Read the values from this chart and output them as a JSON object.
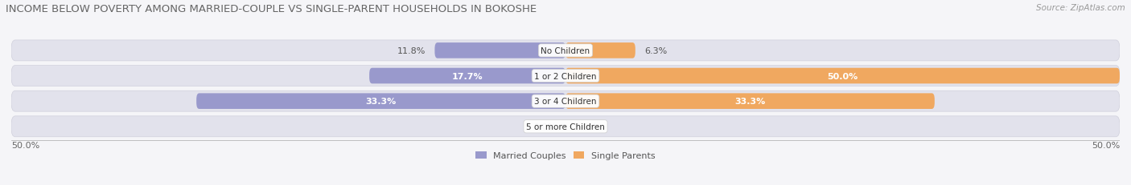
{
  "title": "INCOME BELOW POVERTY AMONG MARRIED-COUPLE VS SINGLE-PARENT HOUSEHOLDS IN BOKOSHE",
  "source": "Source: ZipAtlas.com",
  "categories": [
    "No Children",
    "1 or 2 Children",
    "3 or 4 Children",
    "5 or more Children"
  ],
  "married_values": [
    11.8,
    17.7,
    33.3,
    0.0
  ],
  "single_values": [
    6.3,
    50.0,
    33.3,
    0.0
  ],
  "married_color": "#9999cc",
  "single_color": "#f0a860",
  "bar_bg_color": "#e2e2ec",
  "row_sep_color": "#d0d0dc",
  "background_color": "#f5f5f8",
  "max_val": 50.0,
  "axis_label_left": "50.0%",
  "axis_label_right": "50.0%",
  "legend_married": "Married Couples",
  "legend_single": "Single Parents",
  "title_fontsize": 9.5,
  "source_fontsize": 7.5,
  "label_fontsize": 8,
  "category_fontsize": 7.5,
  "white_label_threshold": 15.0
}
